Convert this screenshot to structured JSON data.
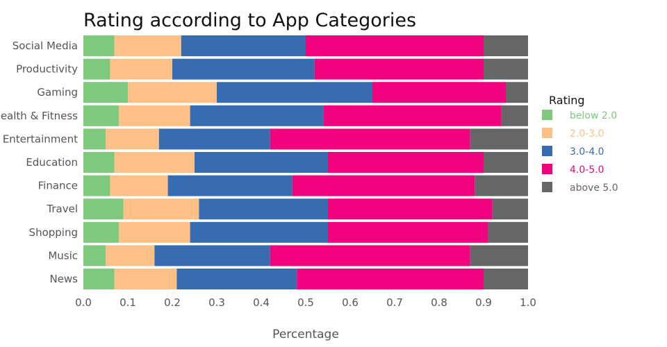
{
  "chart_data": {
    "type": "bar",
    "orientation": "horizontal",
    "stacked": true,
    "title": "Rating according to App Categories",
    "xlabel": "Percentage",
    "ylabel": "",
    "xlim": [
      0.0,
      1.0
    ],
    "xticks": [
      "0.0",
      "0.1",
      "0.2",
      "0.3",
      "0.4",
      "0.5",
      "0.6",
      "0.7",
      "0.8",
      "0.9",
      "1.0"
    ],
    "categories": [
      "Social Media",
      "Productivity",
      "Gaming",
      "Health & Fitness",
      "Entertainment",
      "Education",
      "Finance",
      "Travel",
      "Shopping",
      "Music",
      "News"
    ],
    "series": [
      {
        "name": "below 2.0",
        "color": "#7fc97f",
        "values": [
          0.07,
          0.06,
          0.1,
          0.08,
          0.05,
          0.07,
          0.06,
          0.09,
          0.08,
          0.05,
          0.07
        ]
      },
      {
        "name": "2.0-3.0",
        "color": "#fdc086",
        "values": [
          0.15,
          0.14,
          0.2,
          0.16,
          0.12,
          0.18,
          0.13,
          0.17,
          0.16,
          0.11,
          0.14
        ]
      },
      {
        "name": "3.0-4.0",
        "color": "#386cb0",
        "values": [
          0.28,
          0.32,
          0.35,
          0.3,
          0.25,
          0.3,
          0.28,
          0.29,
          0.31,
          0.26,
          0.27
        ]
      },
      {
        "name": "4.0-5.0",
        "color": "#f0027f",
        "values": [
          0.4,
          0.38,
          0.3,
          0.4,
          0.45,
          0.35,
          0.41,
          0.37,
          0.36,
          0.45,
          0.42
        ]
      },
      {
        "name": "above 5.0",
        "color": "#666666",
        "values": [
          0.1,
          0.1,
          0.05,
          0.06,
          0.13,
          0.1,
          0.12,
          0.08,
          0.09,
          0.13,
          0.1
        ]
      }
    ],
    "legend": {
      "title": "Rating",
      "position": "right"
    },
    "grid": false
  }
}
